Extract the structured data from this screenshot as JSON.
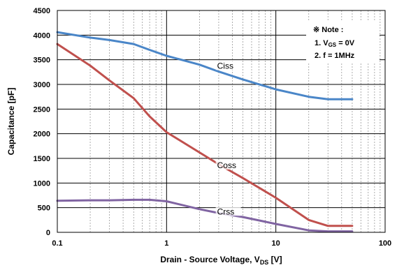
{
  "chart_data": {
    "type": "line",
    "x_scale": "log",
    "xlim": [
      0.1,
      100
    ],
    "ylim": [
      0,
      4500
    ],
    "x_ticks": [
      "0.1",
      "1",
      "10",
      "100"
    ],
    "y_ticks": [
      "0",
      "500",
      "1000",
      "1500",
      "2000",
      "2500",
      "3000",
      "3500",
      "4000",
      "4500"
    ],
    "xlabel_prefix": "Drain - Source Voltage, V",
    "xlabel_sub": "DS",
    "xlabel_suffix": " [V]",
    "ylabel": "Capacitance [pF]",
    "grid": true,
    "note": {
      "title": "※ Note :",
      "line1_prefix": "1. V",
      "line1_sub": "GS",
      "line1_suffix": " = 0V",
      "line2": "2. f = 1MHz"
    },
    "series": [
      {
        "name": "Ciss",
        "color": "#4a86c8",
        "x": [
          0.1,
          0.2,
          0.3,
          0.5,
          0.7,
          1,
          2,
          3,
          5,
          10,
          20,
          30,
          50
        ],
        "y": [
          4060,
          3950,
          3900,
          3820,
          3700,
          3580,
          3400,
          3260,
          3100,
          2900,
          2750,
          2700,
          2700
        ]
      },
      {
        "name": "Coss",
        "color": "#c0504d",
        "x": [
          0.1,
          0.2,
          0.3,
          0.5,
          0.7,
          1,
          2,
          3,
          5,
          10,
          20,
          30,
          50
        ],
        "y": [
          3820,
          3380,
          3080,
          2720,
          2350,
          2030,
          1620,
          1380,
          1100,
          700,
          250,
          130,
          130
        ]
      },
      {
        "name": "Crss",
        "color": "#8064a2",
        "x": [
          0.1,
          0.2,
          0.3,
          0.5,
          0.7,
          1,
          2,
          3,
          5,
          10,
          20,
          30,
          50
        ],
        "y": [
          640,
          650,
          650,
          660,
          660,
          630,
          470,
          390,
          310,
          170,
          40,
          20,
          20
        ]
      }
    ]
  }
}
